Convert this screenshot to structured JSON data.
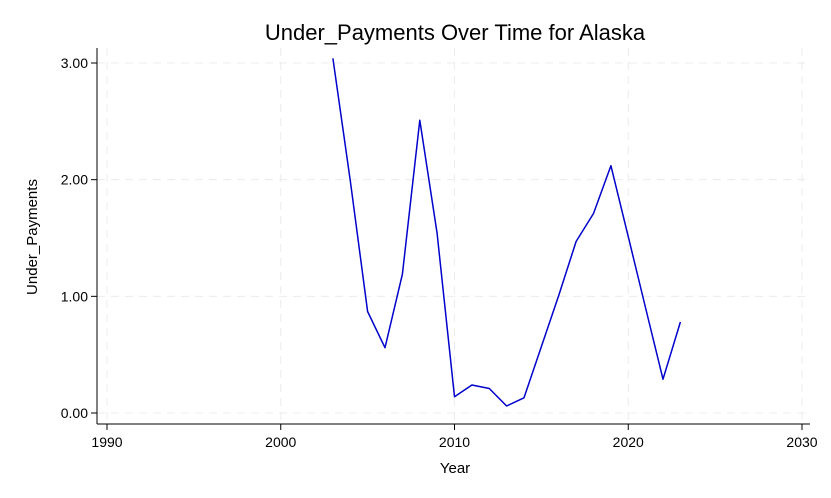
{
  "chart_data": {
    "type": "line",
    "title": "Under_Payments Over Time for Alaska",
    "xlabel": "Year",
    "ylabel": "Under_Payments",
    "xlim": [
      1990,
      2030
    ],
    "ylim": [
      0.0,
      3.13
    ],
    "x_ticks": [
      1990,
      2000,
      2010,
      2020,
      2030
    ],
    "y_ticks": [
      0.0,
      1.0,
      2.0,
      3.0
    ],
    "y_tick_labels": [
      "0.00",
      "1.00",
      "2.00",
      "3.00"
    ],
    "grid": true,
    "series": [
      {
        "color": "#0000cc",
        "x": [
          2003,
          2004,
          2005,
          2006,
          2007,
          2008,
          2009,
          2010,
          2011,
          2012,
          2013,
          2014,
          2015,
          2016,
          2017,
          2018,
          2019,
          2020,
          2021,
          2022,
          2023
        ],
        "y": [
          3.04,
          1.99,
          0.87,
          0.56,
          1.19,
          2.51,
          1.54,
          0.14,
          0.24,
          0.21,
          0.06,
          0.13,
          0.57,
          1.01,
          1.47,
          1.71,
          2.12,
          1.51,
          0.9,
          0.29,
          0.78
        ]
      }
    ]
  }
}
